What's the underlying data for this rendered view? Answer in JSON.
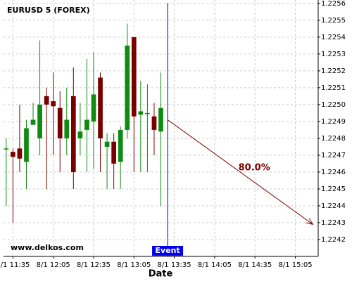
{
  "chart_data": {
    "type": "candlestick",
    "title": "EURUSD 5 (FOREX)",
    "watermark": "www.delkos.com",
    "x_label": "Date",
    "x": [
      "8/1 11:30",
      "8/1 11:35",
      "8/1 11:40",
      "8/1 11:45",
      "8/1 11:50",
      "8/1 11:55",
      "8/1 12:00",
      "8/1 12:05",
      "8/1 12:10",
      "8/1 12:15",
      "8/1 12:20",
      "8/1 12:25",
      "8/1 12:30",
      "8/1 12:35",
      "8/1 12:40",
      "8/1 12:45",
      "8/1 12:50",
      "8/1 12:55",
      "8/1 13:00",
      "8/1 13:05",
      "8/1 13:10",
      "8/1 13:15",
      "8/1 13:20",
      "8/1 13:25"
    ],
    "open": [
      1.22474,
      1.22472,
      1.22474,
      1.22466,
      1.22488,
      1.2248,
      1.22505,
      1.22502,
      1.22498,
      1.2248,
      1.22505,
      1.2248,
      1.22485,
      1.2249,
      1.22516,
      1.22475,
      1.22478,
      1.22466,
      1.22485,
      1.2254,
      1.22494,
      1.22495,
      1.22493,
      1.22484
    ],
    "high": [
      1.2248,
      1.22474,
      1.225,
      1.22491,
      1.22501,
      1.22538,
      1.2251,
      1.22519,
      1.22508,
      1.2251,
      1.22522,
      1.22501,
      1.22527,
      1.22531,
      1.22519,
      1.22483,
      1.22483,
      1.22487,
      1.22548,
      1.2254,
      1.22514,
      1.22512,
      1.22501,
      1.22519
    ],
    "low": [
      1.2244,
      1.2243,
      1.2246,
      1.2245,
      1.22488,
      1.2247,
      1.2245,
      1.2247,
      1.2246,
      1.2247,
      1.2245,
      1.2247,
      1.2246,
      1.22462,
      1.2246,
      1.2245,
      1.2245,
      1.2245,
      1.2248,
      1.2246,
      1.2246,
      1.2246,
      1.2247,
      1.2244
    ],
    "close": [
      1.22474,
      1.22469,
      1.22468,
      1.22486,
      1.22491,
      1.225,
      1.225,
      1.22499,
      1.2248,
      1.22491,
      1.2246,
      1.22484,
      1.22491,
      1.22506,
      1.2248,
      1.22478,
      1.22465,
      1.22485,
      1.22535,
      1.22493,
      1.22496,
      1.22495,
      1.22485,
      1.22498
    ],
    "up_color": "#108a10",
    "down_color": "#7a0000",
    "xlim": [
      "8/1 11:28",
      "8/1 15:22"
    ],
    "xticks": [
      "8/1 11:35",
      "8/1 12:05",
      "8/1 12:35",
      "8/1 13:05",
      "8/1 13:35",
      "8/1 14:05",
      "8/1 14:35",
      "8/1 15:05"
    ],
    "ylim": [
      1.2241,
      1.22562
    ],
    "yticks": [
      1.2242,
      1.2243,
      1.2244,
      1.2245,
      1.2246,
      1.2247,
      1.2248,
      1.2249,
      {
        "value": 1.225,
        "label": "1.2250"
      },
      1.2251,
      1.2252,
      1.2253,
      1.2254,
      1.2255,
      1.2256
    ],
    "grid": true,
    "event": {
      "x": "8/1 13:30",
      "label": "Event",
      "color": "#0000ee"
    },
    "forecast": {
      "start_x": "8/1 13:30",
      "start_y": 1.22491,
      "end_x": "8/1 15:18",
      "end_y": 1.22429,
      "label": "80.0%",
      "color": "#7a0000"
    }
  }
}
